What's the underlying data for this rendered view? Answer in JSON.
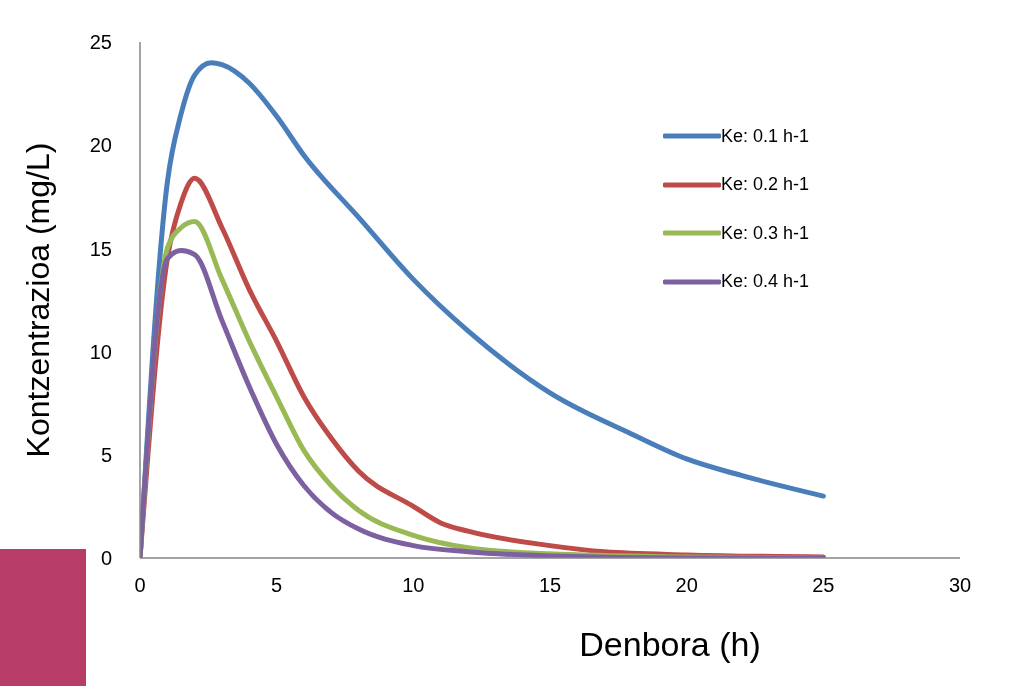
{
  "chart_data": {
    "type": "line",
    "xlabel": "Denbora (h)",
    "ylabel": "Kontzentrazioa (mg/L)",
    "xlim": [
      0,
      30
    ],
    "xticks": [
      0,
      5,
      10,
      15,
      20,
      25,
      30
    ],
    "ylim": [
      0,
      25
    ],
    "yticks": [
      0,
      5,
      10,
      15,
      20,
      25
    ],
    "grid": false,
    "legend": "top right",
    "marker": "none",
    "line_style": "solid",
    "series": [
      {
        "name": "Ke: 0.1 h-1",
        "color": "#4a7ebb",
        "x": [
          0,
          1,
          1.5,
          2,
          2.6,
          3,
          4,
          5,
          6,
          8,
          10,
          12,
          15,
          18,
          20,
          22,
          25
        ],
        "values": [
          0,
          18.2,
          21.5,
          23.4,
          24,
          23.9,
          23,
          21.4,
          19.5,
          16.5,
          13.5,
          11,
          8,
          6,
          4.8,
          4,
          3
        ]
      },
      {
        "name": "Ke: 0.2 h-1",
        "color": "#be4b48",
        "x": [
          0,
          1,
          1.5,
          2,
          3,
          4,
          5,
          6,
          7,
          8,
          10,
          11,
          12,
          15,
          17,
          20,
          25
        ],
        "values": [
          0,
          14.5,
          17.2,
          18.4,
          16,
          13,
          10.5,
          7.8,
          5.8,
          4.2,
          2.5,
          1.7,
          1.3,
          0.6,
          0.3,
          0.15,
          0.05
        ]
      },
      {
        "name": "Ke: 0.3 h-1",
        "color": "#98b954",
        "x": [
          0,
          1,
          1.5,
          2,
          3,
          4,
          5,
          6,
          7,
          8,
          10,
          12,
          15,
          20,
          25
        ],
        "values": [
          0,
          15,
          16,
          16.3,
          13.5,
          10.5,
          7.8,
          5.2,
          3.5,
          2.3,
          1.1,
          0.5,
          0.2,
          0.05,
          0
        ]
      },
      {
        "name": "Ke: 0.4 h-1",
        "color": "#7d60a0",
        "x": [
          0,
          1,
          1.5,
          2,
          3,
          4,
          5,
          6,
          7,
          8,
          10,
          12,
          15,
          20,
          25
        ],
        "values": [
          0,
          14.5,
          14.9,
          14.7,
          11.5,
          8.3,
          5.5,
          3.5,
          2.2,
          1.4,
          0.6,
          0.3,
          0.1,
          0,
          0
        ]
      }
    ]
  }
}
